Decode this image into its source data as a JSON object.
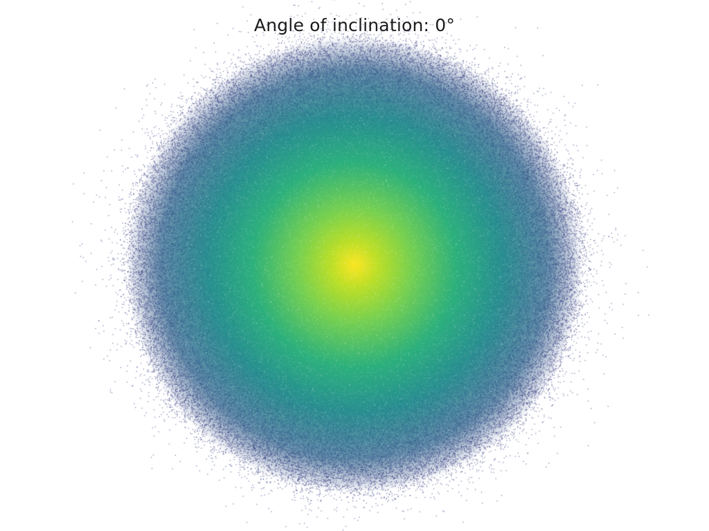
{
  "title": "Angle of inclination: 0°",
  "colors": {
    "background": "#ffffff",
    "title_text": "#1a1a1a",
    "core": "#fde725",
    "inner": "#7ad151",
    "mid": "#22a884",
    "outer": "#2a788e",
    "edge": "#414487",
    "sparse_points": "#46508f"
  }
}
